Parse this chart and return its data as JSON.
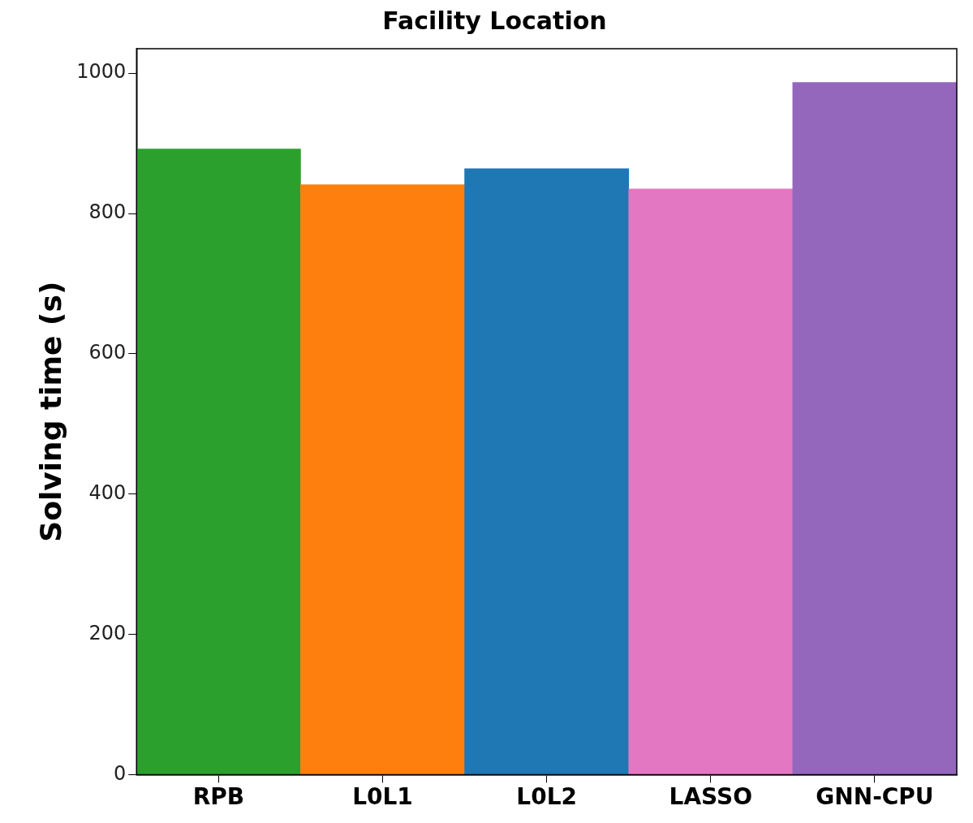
{
  "chart_data": {
    "type": "bar",
    "title": "Facility Location",
    "ylabel": "Solving time (s)",
    "categories": [
      "RPB",
      "L0L1",
      "L0L2",
      "LASSO",
      "GNN-CPU"
    ],
    "values": [
      892,
      841,
      864,
      835,
      987
    ],
    "colors": [
      "#2ca02c",
      "#ff7f0e",
      "#1f77b4",
      "#e377c2",
      "#9467bd"
    ],
    "ylim": [
      0,
      1035
    ],
    "yticks": [
      0,
      200,
      400,
      600,
      800,
      1000
    ],
    "grid": false,
    "legend": false
  }
}
